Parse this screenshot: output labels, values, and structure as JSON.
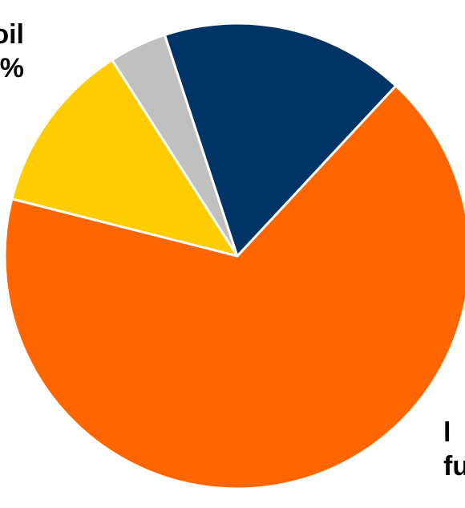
{
  "chart_data": {
    "type": "pie",
    "title": "",
    "slices": [
      {
        "label": "oil",
        "value": 67,
        "color": "#FF6600"
      },
      {
        "label": "",
        "value": 12,
        "color": "#FFCC00"
      },
      {
        "label": "",
        "value": 4,
        "color": "#C0C0C0"
      },
      {
        "label": "fu",
        "value": 17,
        "color": "#003366"
      }
    ],
    "visible_text": {
      "oil_line1": "oil",
      "oil_line2": "%",
      "biofuel_line1": "l",
      "biofuel_line2": "fu"
    },
    "start_angle_deg": -47,
    "direction": "clockwise",
    "slice_border_color": "#ffffff"
  }
}
